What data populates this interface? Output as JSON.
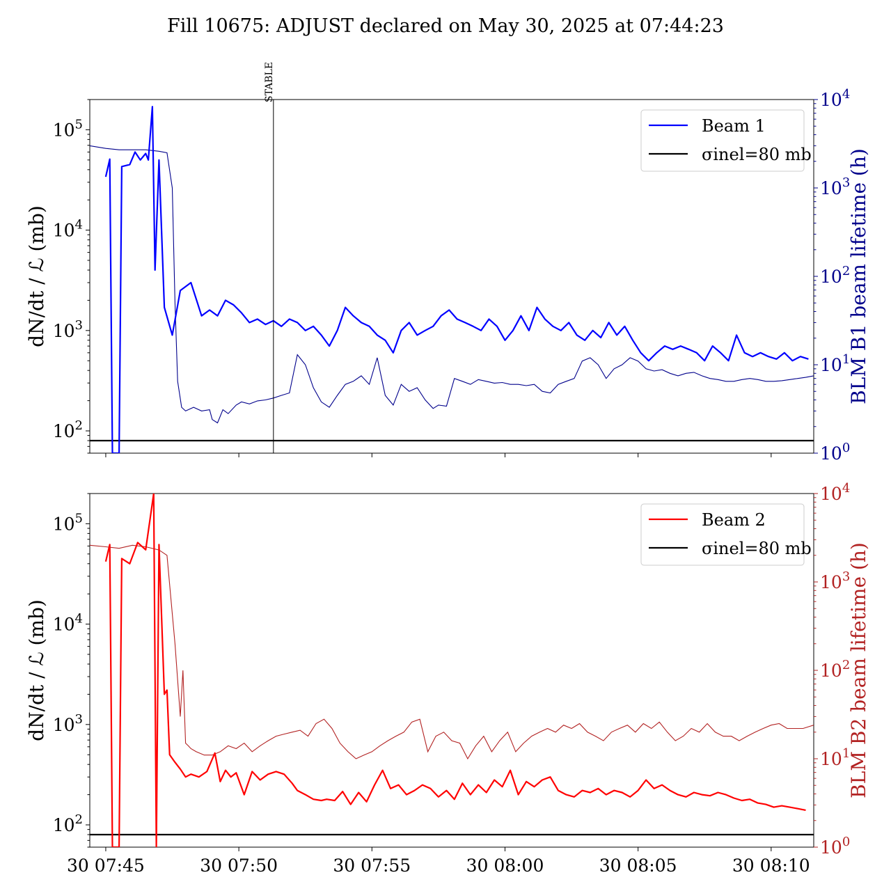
{
  "chart_data": [
    {
      "type": "line",
      "title": "Fill 10675: ADJUST declared on May 30, 2025 at 07:44:23",
      "x_unit": "minutes after 30 07:45",
      "xlim": [
        -0.6,
        26.6
      ],
      "xticks": [
        "30 07:45",
        "30 07:50",
        "30 07:55",
        "30 08:00",
        "30 08:05",
        "30 08:10"
      ],
      "ylabel_left": "dN/dt / ℒ (mb)",
      "ylabel_right": "BLM B1 beam lifetime (h)",
      "ylim_left": [
        60,
        200000
      ],
      "ylim_right": [
        1,
        10000
      ],
      "yscale": "log",
      "left_ticks": [
        "10^2",
        "10^3",
        "10^4",
        "10^5"
      ],
      "right_ticks": [
        "10^0",
        "10^1",
        "10^2",
        "10^3",
        "10^4"
      ],
      "annotation": {
        "label": "STABLE",
        "x": 6.3
      },
      "colors": {
        "main": "#0000ff",
        "lifetime": "#00008b",
        "right_axis": "#00008b",
        "reference": "#000000"
      },
      "legend": {
        "position": "top-right",
        "entries": [
          "Beam 1",
          "σinel=80 mb"
        ]
      },
      "reference_line": {
        "name": "σinel=80 mb",
        "y": 80
      },
      "series": [
        {
          "name": "Beam 1",
          "axis": "left",
          "x": [
            0.0,
            0.15,
            0.25,
            0.5,
            0.6,
            0.9,
            1.1,
            1.3,
            1.5,
            1.6,
            1.75,
            1.85,
            2.0,
            2.2,
            2.5,
            2.8,
            3.2,
            3.6,
            3.9,
            4.2,
            4.5,
            4.8,
            5.1,
            5.4,
            5.7,
            6.0,
            6.3,
            6.6,
            6.9,
            7.2,
            7.5,
            7.8,
            8.1,
            8.4,
            8.7,
            9.0,
            9.3,
            9.6,
            9.9,
            10.2,
            10.5,
            10.8,
            11.1,
            11.4,
            11.7,
            12.0,
            12.3,
            12.6,
            12.9,
            13.2,
            13.5,
            13.8,
            14.1,
            14.4,
            14.7,
            15.0,
            15.3,
            15.6,
            15.9,
            16.2,
            16.5,
            16.8,
            17.1,
            17.4,
            17.7,
            18.0,
            18.3,
            18.6,
            18.9,
            19.2,
            19.5,
            19.8,
            20.1,
            20.4,
            20.7,
            21.0,
            21.3,
            21.6,
            21.9,
            22.2,
            22.5,
            22.8,
            23.1,
            23.4,
            23.7,
            24.0,
            24.3,
            24.6,
            24.9,
            25.2,
            25.5,
            25.8,
            26.1,
            26.4
          ],
          "values": [
            34000,
            51000,
            60,
            60,
            43000,
            45000,
            60000,
            50000,
            58000,
            50000,
            170000,
            4000,
            50000,
            1700,
            900,
            2500,
            3000,
            1400,
            1600,
            1400,
            2000,
            1800,
            1500,
            1200,
            1300,
            1150,
            1250,
            1100,
            1300,
            1200,
            1000,
            1100,
            900,
            700,
            1000,
            1700,
            1400,
            1200,
            1100,
            900,
            800,
            600,
            1000,
            1200,
            900,
            1000,
            1100,
            1400,
            1600,
            1300,
            1200,
            1100,
            1000,
            1300,
            1100,
            800,
            1000,
            1400,
            1000,
            1700,
            1300,
            1100,
            1000,
            1200,
            900,
            800,
            1000,
            850,
            1200,
            900,
            1100,
            800,
            600,
            500,
            600,
            700,
            650,
            700,
            650,
            600,
            500,
            700,
            600,
            500,
            900,
            600,
            550,
            600,
            550,
            520,
            600,
            500,
            550,
            520
          ]
        },
        {
          "name": "BLM B1 beam lifetime",
          "axis": "right",
          "x": [
            -0.6,
            0.0,
            0.5,
            1.0,
            1.5,
            2.0,
            2.3,
            2.5,
            2.6,
            2.7,
            2.85,
            3.0,
            3.3,
            3.6,
            3.9,
            4.0,
            4.2,
            4.4,
            4.6,
            4.9,
            5.1,
            5.4,
            5.7,
            6.0,
            6.3,
            6.6,
            6.9,
            7.2,
            7.5,
            7.8,
            8.1,
            8.4,
            8.7,
            9.0,
            9.3,
            9.6,
            9.9,
            10.2,
            10.5,
            10.8,
            11.1,
            11.4,
            11.7,
            12.0,
            12.3,
            12.5,
            12.8,
            13.1,
            13.4,
            13.7,
            14.0,
            14.3,
            14.6,
            14.9,
            15.2,
            15.5,
            15.8,
            16.1,
            16.4,
            16.7,
            17.0,
            17.3,
            17.6,
            17.9,
            18.2,
            18.5,
            18.8,
            19.1,
            19.4,
            19.7,
            20.0,
            20.3,
            20.6,
            20.9,
            21.2,
            21.5,
            21.8,
            22.1,
            22.4,
            22.7,
            23.0,
            23.3,
            23.6,
            23.9,
            24.2,
            24.5,
            24.8,
            25.1,
            25.4,
            25.7,
            26.0,
            26.3,
            26.6
          ],
          "values": [
            3000,
            2800,
            2700,
            2700,
            2700,
            2600,
            2500,
            1000,
            50,
            6.5,
            3.3,
            3.0,
            3.3,
            3.0,
            3.1,
            2.4,
            2.2,
            3.1,
            2.8,
            3.5,
            3.8,
            3.6,
            3.9,
            4.0,
            4.2,
            4.5,
            4.8,
            13,
            10,
            5.5,
            3.8,
            3.3,
            4.5,
            6.0,
            6.5,
            7.5,
            6.0,
            12,
            4.5,
            3.5,
            6.0,
            5.0,
            5.5,
            4.0,
            3.2,
            3.5,
            3.4,
            7.0,
            6.5,
            6.0,
            6.8,
            6.5,
            6.2,
            6.3,
            6.0,
            6.0,
            5.8,
            6.0,
            5.0,
            4.8,
            6.0,
            6.5,
            7.0,
            11,
            12,
            10,
            7.0,
            9.0,
            10,
            12,
            11,
            9.0,
            8.5,
            8.8,
            8.0,
            7.5,
            8.0,
            8.2,
            7.5,
            7.0,
            6.8,
            6.5,
            6.5,
            6.8,
            7.0,
            6.8,
            6.5,
            6.5,
            6.6,
            6.8,
            7.0,
            7.2,
            7.5
          ]
        }
      ]
    },
    {
      "type": "line",
      "xlim": [
        -0.6,
        26.6
      ],
      "xticks": [
        "30 07:45",
        "30 07:50",
        "30 07:55",
        "30 08:00",
        "30 08:05",
        "30 08:10"
      ],
      "ylabel_left": "dN/dt / ℒ (mb)",
      "ylabel_right": "BLM B2 beam lifetime (h)",
      "ylim_left": [
        60,
        200000
      ],
      "ylim_right": [
        1,
        10000
      ],
      "yscale": "log",
      "left_ticks": [
        "10^2",
        "10^3",
        "10^4",
        "10^5"
      ],
      "right_ticks": [
        "10^0",
        "10^1",
        "10^2",
        "10^3",
        "10^4"
      ],
      "colors": {
        "main": "#ff0000",
        "lifetime": "#b22222",
        "right_axis": "#b22222",
        "reference": "#000000"
      },
      "legend": {
        "position": "top-right",
        "entries": [
          "Beam 2",
          "σinel=80 mb"
        ]
      },
      "reference_line": {
        "name": "σinel=80 mb",
        "y": 80
      },
      "series": [
        {
          "name": "Beam 2",
          "axis": "left",
          "x": [
            0.0,
            0.15,
            0.25,
            0.5,
            0.6,
            0.9,
            1.2,
            1.5,
            1.8,
            1.9,
            2.0,
            2.2,
            2.3,
            2.4,
            2.6,
            2.8,
            3.0,
            3.2,
            3.5,
            3.8,
            4.1,
            4.3,
            4.5,
            4.7,
            4.9,
            5.2,
            5.5,
            5.8,
            6.1,
            6.4,
            6.7,
            7.0,
            7.2,
            7.5,
            7.8,
            8.1,
            8.3,
            8.6,
            8.9,
            9.2,
            9.5,
            9.8,
            10.1,
            10.4,
            10.7,
            11.0,
            11.3,
            11.6,
            11.9,
            12.2,
            12.5,
            12.8,
            13.1,
            13.4,
            13.7,
            14.0,
            14.3,
            14.6,
            14.9,
            15.2,
            15.5,
            15.8,
            16.1,
            16.4,
            16.7,
            17.0,
            17.3,
            17.6,
            17.9,
            18.2,
            18.5,
            18.8,
            19.1,
            19.4,
            19.7,
            20.0,
            20.3,
            20.6,
            20.9,
            21.2,
            21.5,
            21.8,
            22.1,
            22.4,
            22.7,
            23.0,
            23.3,
            23.6,
            23.9,
            24.2,
            24.5,
            24.8,
            25.1,
            25.4,
            25.7,
            26.0,
            26.3
          ],
          "values": [
            42000,
            62000,
            60,
            60,
            45000,
            40000,
            65000,
            55000,
            210000,
            60,
            62000,
            2000,
            2200,
            500,
            420,
            360,
            300,
            320,
            300,
            340,
            520,
            270,
            350,
            300,
            330,
            200,
            340,
            280,
            320,
            340,
            320,
            260,
            220,
            200,
            180,
            175,
            180,
            175,
            215,
            160,
            210,
            170,
            250,
            350,
            230,
            250,
            200,
            220,
            250,
            230,
            190,
            220,
            180,
            260,
            200,
            250,
            210,
            280,
            240,
            350,
            200,
            270,
            240,
            280,
            300,
            220,
            200,
            190,
            220,
            210,
            230,
            200,
            220,
            210,
            190,
            220,
            280,
            230,
            250,
            220,
            200,
            190,
            210,
            200,
            195,
            210,
            200,
            185,
            175,
            180,
            165,
            160,
            150,
            155,
            150,
            145,
            140
          ]
        },
        {
          "name": "BLM B2 beam lifetime",
          "axis": "right",
          "x": [
            -0.6,
            0.0,
            0.5,
            1.0,
            1.5,
            2.0,
            2.3,
            2.6,
            2.8,
            2.9,
            3.0,
            3.1,
            3.2,
            3.4,
            3.7,
            4.0,
            4.3,
            4.6,
            4.9,
            5.2,
            5.5,
            5.8,
            6.1,
            6.4,
            6.7,
            7.0,
            7.3,
            7.6,
            7.9,
            8.2,
            8.5,
            8.8,
            9.1,
            9.4,
            9.7,
            10.0,
            10.3,
            10.6,
            10.9,
            11.2,
            11.5,
            11.8,
            12.1,
            12.4,
            12.7,
            13.0,
            13.3,
            13.6,
            13.9,
            14.2,
            14.5,
            14.8,
            15.1,
            15.4,
            15.7,
            16.0,
            16.3,
            16.6,
            16.9,
            17.2,
            17.5,
            17.8,
            18.1,
            18.4,
            18.7,
            19.0,
            19.3,
            19.6,
            19.9,
            20.2,
            20.5,
            20.8,
            21.1,
            21.4,
            21.7,
            22.0,
            22.3,
            22.6,
            22.9,
            23.2,
            23.5,
            23.8,
            24.1,
            24.4,
            24.7,
            25.0,
            25.3,
            25.6,
            25.9,
            26.2,
            26.6
          ],
          "values": [
            2600,
            2500,
            2400,
            2600,
            2500,
            2300,
            2000,
            200,
            30,
            100,
            15,
            14,
            13,
            12,
            11,
            11,
            12,
            14,
            13,
            15,
            12,
            14,
            16,
            18,
            19,
            20,
            21,
            18,
            25,
            28,
            22,
            15,
            12,
            10,
            11,
            12,
            14,
            16,
            18,
            20,
            26,
            28,
            12,
            18,
            20,
            16,
            15,
            10,
            14,
            18,
            12,
            16,
            20,
            12,
            15,
            18,
            20,
            22,
            20,
            24,
            22,
            25,
            20,
            18,
            16,
            20,
            22,
            24,
            20,
            25,
            22,
            26,
            20,
            16,
            18,
            22,
            20,
            25,
            20,
            18,
            18,
            16,
            18,
            20,
            22,
            24,
            25,
            22,
            22,
            22,
            24
          ]
        }
      ]
    }
  ]
}
